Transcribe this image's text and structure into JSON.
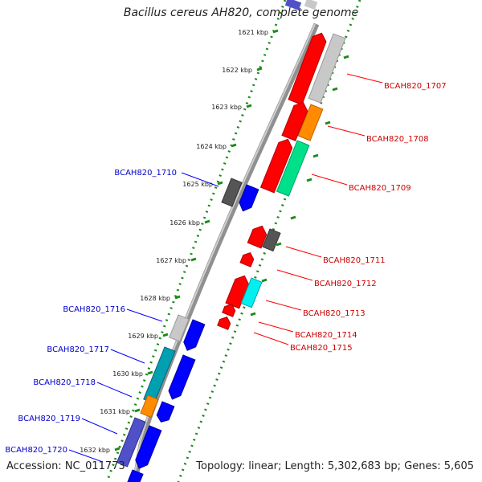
{
  "header": {
    "title": "Bacillus cereus AH820, complete genome"
  },
  "footer": {
    "accession": "Accession: NC_011773",
    "stats": "Topology: linear; Length: 5,302,683 bp; Genes: 5,605"
  },
  "colors": {
    "red": "#ff0000",
    "blue": "#0000ff",
    "gray": "#555555",
    "lightgray": "#c8c8c8",
    "orange": "#ff8c00",
    "green": "#00e08a",
    "cyan": "#00f0f0",
    "teal": "#00a0b0",
    "label_red": "#cc0000",
    "label_blue": "#0000cc",
    "ruler": "#1a8a1a"
  },
  "ruler_ticks": [
    {
      "label": "1621 kbp"
    },
    {
      "label": "1622 kbp"
    },
    {
      "label": "1623 kbp"
    },
    {
      "label": "1624 kbp"
    },
    {
      "label": "1625 kbp"
    },
    {
      "label": "1626 kbp"
    },
    {
      "label": "1627 kbp"
    },
    {
      "label": "1628 kbp"
    },
    {
      "label": "1629 kbp"
    },
    {
      "label": "1630 kbp"
    },
    {
      "label": "1631 kbp"
    },
    {
      "label": "1632 kbp"
    }
  ],
  "gene_labels": [
    {
      "text": "BCAH820_1707",
      "color": "red"
    },
    {
      "text": "BCAH820_1708",
      "color": "red"
    },
    {
      "text": "BCAH820_1709",
      "color": "red"
    },
    {
      "text": "BCAH820_1711",
      "color": "red"
    },
    {
      "text": "BCAH820_1712",
      "color": "red"
    },
    {
      "text": "BCAH820_1713",
      "color": "red"
    },
    {
      "text": "BCAH820_1714",
      "color": "red"
    },
    {
      "text": "BCAH820_1715",
      "color": "red"
    },
    {
      "text": "BCAH820_1710",
      "color": "blue"
    },
    {
      "text": "BCAH820_1716",
      "color": "blue"
    },
    {
      "text": "BCAH820_1717",
      "color": "blue"
    },
    {
      "text": "BCAH820_1718",
      "color": "blue"
    },
    {
      "text": "BCAH820_1719",
      "color": "blue"
    },
    {
      "text": "BCAH820_1720",
      "color": "blue"
    }
  ]
}
